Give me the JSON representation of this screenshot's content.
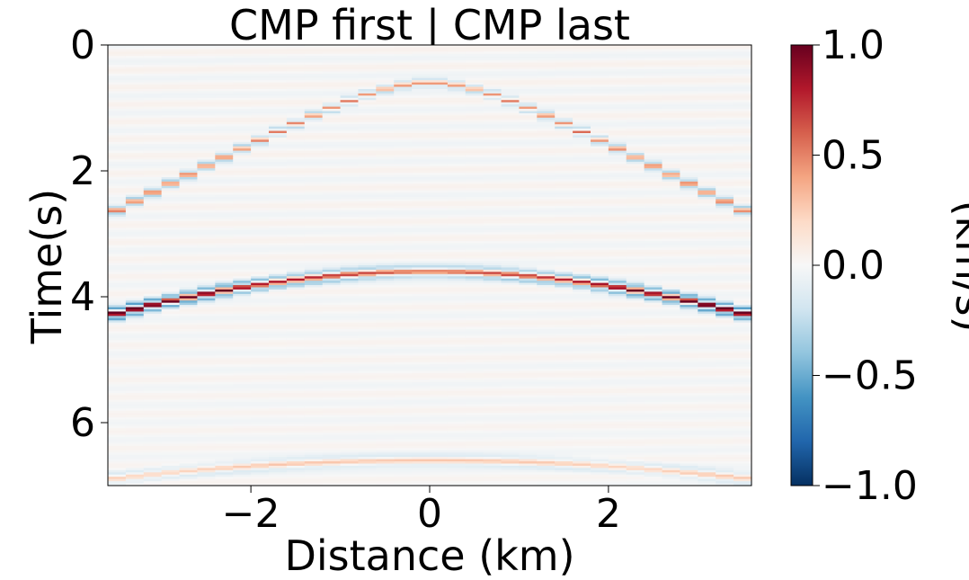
{
  "chart_data": {
    "type": "heatmap",
    "title": "CMP first | CMP last",
    "xlabel": "Distance (km)",
    "ylabel": "Time(s)",
    "xlim": [
      -3.6,
      3.6
    ],
    "ylim": [
      7,
      0
    ],
    "x_ticks": [
      -2,
      0,
      2
    ],
    "x_tick_labels": [
      "−2",
      "0",
      "2"
    ],
    "y_ticks": [
      0,
      2,
      4,
      6
    ],
    "y_tick_labels": [
      "0",
      "2",
      "4",
      "6"
    ],
    "colorbar": {
      "label": "(km/s)",
      "vmin": -1.0,
      "vmax": 1.0,
      "ticks": [
        1.0,
        0.5,
        0.0,
        -0.5,
        -1.0
      ],
      "tick_labels": [
        "1.0",
        "0.5",
        "0.0",
        "−0.5",
        "−1.0"
      ],
      "colormap": "RdBu_r",
      "colors": [
        "#053061",
        "#2166ac",
        "#4393c3",
        "#92c5de",
        "#d1e5f0",
        "#f7f7f7",
        "#fddbc7",
        "#f4a582",
        "#d6604d",
        "#b2182b",
        "#67001f"
      ]
    },
    "events": [
      {
        "apex_time_s": 0.6,
        "edge_time_s": 2.7,
        "peak_amplitude": 0.6
      },
      {
        "apex_time_s": 3.6,
        "edge_time_s": 4.3,
        "peak_amplitude": 1.0
      },
      {
        "apex_time_s": 6.6,
        "edge_time_s": 6.9,
        "peak_amplitude": 0.25
      }
    ],
    "grid": false
  }
}
